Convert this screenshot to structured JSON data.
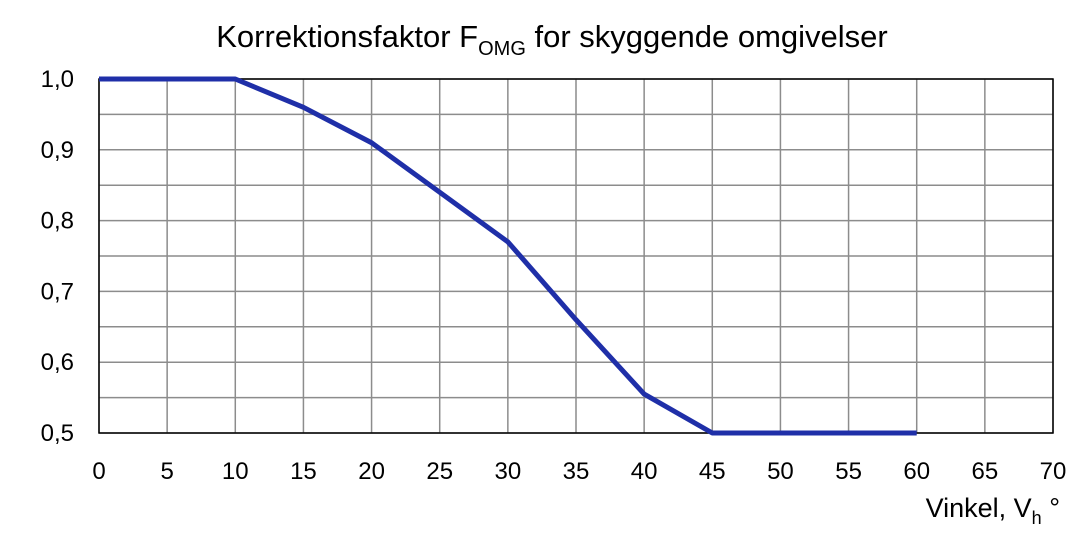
{
  "chart_data": {
    "type": "line",
    "title": "Korrektionsfaktor F",
    "title_subscript": "OMG",
    "title_suffix": " for skyggende omgivelser",
    "xlabel": "Vinkel, V",
    "xlabel_subscript": "h",
    "xlabel_suffix": " °",
    "ylabel": "",
    "xlim": [
      0,
      70
    ],
    "ylim": [
      0.5,
      1.0
    ],
    "x_ticks": [
      0,
      5,
      10,
      15,
      20,
      25,
      30,
      35,
      40,
      45,
      50,
      55,
      60,
      65,
      70
    ],
    "y_ticks": [
      0.5,
      0.6,
      0.7,
      0.8,
      0.9,
      1.0
    ],
    "y_tick_labels": [
      "0,5",
      "0,6",
      "0,7",
      "0,8",
      "0,9",
      "1,0"
    ],
    "grid": true,
    "series": [
      {
        "color": "#1f2fa8",
        "x": [
          0,
          10,
          15,
          20,
          25,
          30,
          35,
          40,
          45,
          60
        ],
        "y": [
          1.0,
          1.0,
          0.96,
          0.91,
          0.84,
          0.77,
          0.66,
          0.555,
          0.5,
          0.5
        ]
      }
    ]
  }
}
